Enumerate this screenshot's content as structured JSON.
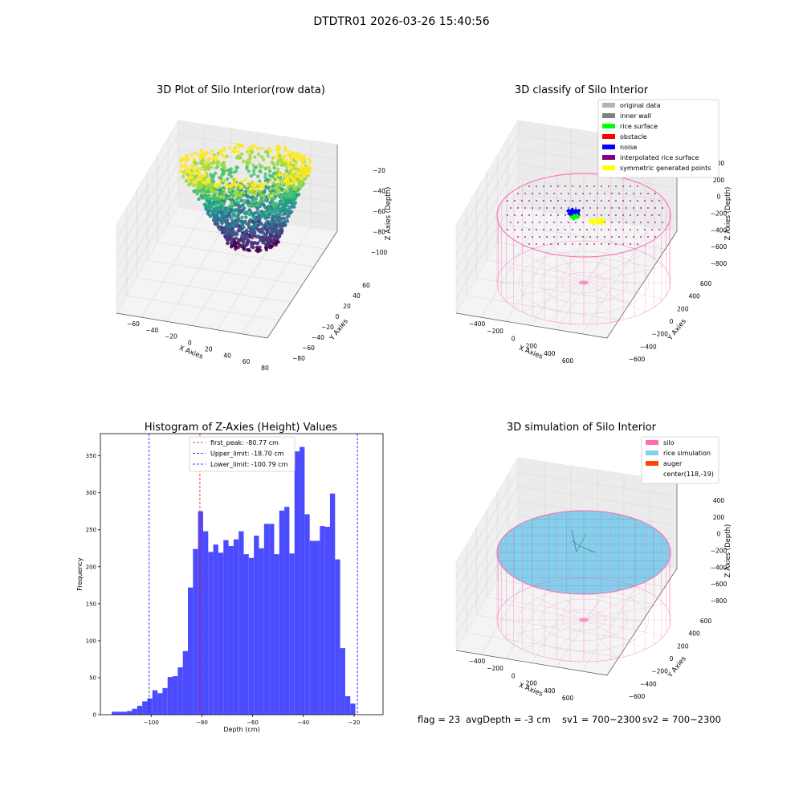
{
  "figure": {
    "suptitle": "DTDTR01 2026-03-26 15:40:56",
    "footer": {
      "flag": "flag = 23",
      "avg_depth": "avgDepth = -3 cm",
      "sv1": "sv1 = 700~2300",
      "sv2": "sv2 = 700~2300"
    }
  },
  "chart_data": [
    {
      "type": "scatter",
      "title": "3D Plot of Silo Interior(row data)",
      "xlabel": "X Axies",
      "ylabel": "Y Axies",
      "zlabel": "Z Axies (Depth)",
      "x_ticks": [
        "−60",
        "−40",
        "−20",
        "0",
        "20",
        "40",
        "60",
        "80"
      ],
      "y_ticks": [
        "−80",
        "−60",
        "−40",
        "−20",
        "0",
        "20",
        "40",
        "60"
      ],
      "z_ticks": [
        "−20",
        "−40",
        "−60",
        "−80",
        "−100"
      ],
      "colormap": "viridis"
    },
    {
      "type": "scatter",
      "title": "3D classify of Silo Interior",
      "xlabel": "X Axies",
      "ylabel": "Y Axies",
      "zlabel": "Z Axies (Depth)",
      "x_ticks": [
        "−400",
        "−200",
        "0",
        "200",
        "400",
        "600"
      ],
      "y_ticks": [
        "−600",
        "−400",
        "−200",
        "0",
        "200",
        "400",
        "600"
      ],
      "z_ticks": [
        "400",
        "200",
        "0",
        "−200",
        "−400",
        "−600",
        "−800"
      ],
      "legend": [
        {
          "label": "original data",
          "color": "#b3b3b3"
        },
        {
          "label": "inner wall",
          "color": "#808080"
        },
        {
          "label": "rice surface",
          "color": "#00ff00"
        },
        {
          "label": "obstacle",
          "color": "#ff0000"
        },
        {
          "label": "noise",
          "color": "#0000ff"
        },
        {
          "label": "interpolated rice surface",
          "color": "#800080"
        },
        {
          "label": "symmetric generated points",
          "color": "#ffff00"
        }
      ],
      "legend_position": "top-right"
    },
    {
      "type": "bar",
      "title": "Histogram of Z-Axies (Height) Values",
      "xlabel": "Depth (cm)",
      "ylabel": "Frequency",
      "xlim": [
        -120,
        -8.6
      ],
      "ylim": [
        0,
        380
      ],
      "x_ticks": [
        -100,
        -80,
        -60,
        -40,
        -20
      ],
      "y_ticks": [
        0,
        50,
        100,
        150,
        200,
        250,
        300,
        350
      ],
      "bin_start": -115.5,
      "bin_width": 2.0,
      "values": [
        4,
        4,
        4,
        5,
        8,
        12,
        18,
        22,
        33,
        29,
        36,
        51,
        52,
        64,
        86,
        172,
        224,
        275,
        248,
        220,
        230,
        219,
        236,
        228,
        237,
        248,
        217,
        212,
        242,
        225,
        258,
        258,
        217,
        276,
        281,
        218,
        356,
        362,
        271,
        235,
        235,
        255,
        254,
        299,
        210,
        90,
        25,
        15
      ],
      "bar_color": "#4c4cff",
      "vlines": [
        {
          "label": "first_peak: -80.77 cm",
          "value": -80.77,
          "color": "#ff0000"
        },
        {
          "label": "Upper_limit: -18.70 cm",
          "value": -18.7,
          "color": "#0000ff"
        },
        {
          "label": "Lower_limit: -100.79 cm",
          "value": -100.79,
          "color": "#0000ff"
        }
      ],
      "legend_position": "top-center"
    },
    {
      "type": "scatter",
      "title": "3D simulation of Silo Interior",
      "xlabel": "X Axies",
      "ylabel": "Y Axies",
      "zlabel": "Z Axies (Depth)",
      "x_ticks": [
        "−400",
        "−200",
        "0",
        "200",
        "400",
        "600"
      ],
      "y_ticks": [
        "−600",
        "−400",
        "−200",
        "0",
        "200",
        "400",
        "600"
      ],
      "z_ticks": [
        "400",
        "200",
        "0",
        "−200",
        "−400",
        "−600",
        "−800"
      ],
      "legend": [
        {
          "label": "silo",
          "color": "#ff69b4"
        },
        {
          "label": "rice simulation",
          "color": "#87ceeb"
        },
        {
          "label": "auger",
          "color": "#ff4500"
        },
        {
          "label": "center(118,-19)",
          "color": ""
        }
      ],
      "legend_position": "top-right"
    }
  ]
}
